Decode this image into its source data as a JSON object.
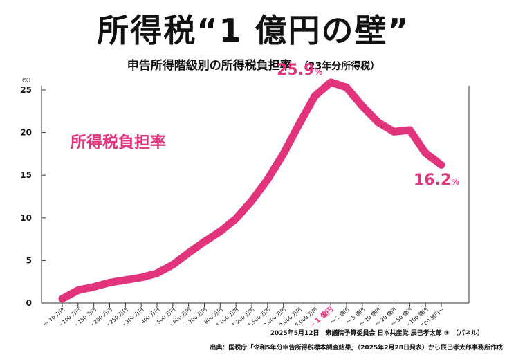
{
  "title": "所得税“1 億円の壁”",
  "subtitle": "申告所得階級別の所得税負担率",
  "subtitle_note": "（23年分所得税）",
  "footer": {
    "line1": "2025年5月12日　衆議院予算委員会 日本共産党 辰巳孝太郎 ③　（パネル）",
    "line2": "出典：国税庁「令和5年分申告所得税標本調査結果」（2025年2月28日発表）から辰巳孝太郎事務所作成"
  },
  "chart_data": {
    "type": "line",
    "unit_label": "(%)",
    "series_label": "所得税負担率",
    "color": "#e2347d",
    "categories": [
      "～ 70 万円",
      "～ 100 万円",
      "～ 150 万円",
      "～ 200 万円",
      "～ 250 万円",
      "～ 300 万円",
      "～ 400 万円",
      "～ 500 万円",
      "～ 600 万円",
      "～ 700 万円",
      "～ 800 万円",
      "～ 1,000 万円",
      "～ 1,200 万円",
      "～ 1,500 万円",
      "～ 2,000 万円",
      "～ 3,000 万円",
      "～ 5,000 万円",
      "～ 1 億円",
      "～ 2 億円",
      "～ 5 億円",
      "～ 10 億円",
      "～ 20 億円",
      "～ 50 億円",
      "～ 100 億円",
      "100 億円～"
    ],
    "highlight_category": "～ 1 億円",
    "values": [
      0.5,
      1.5,
      1.9,
      2.4,
      2.7,
      3.0,
      3.5,
      4.5,
      5.9,
      7.2,
      8.4,
      9.9,
      12.0,
      14.5,
      17.5,
      21.0,
      24.3,
      25.9,
      25.3,
      23.1,
      21.2,
      20.1,
      20.3,
      17.6,
      16.2
    ],
    "ylim": [
      0,
      25
    ],
    "yticks": [
      0,
      5,
      10,
      15,
      20,
      25
    ],
    "annotations": [
      {
        "value": "25.9",
        "unit": "%"
      },
      {
        "value": "16.2",
        "unit": "%"
      }
    ]
  }
}
